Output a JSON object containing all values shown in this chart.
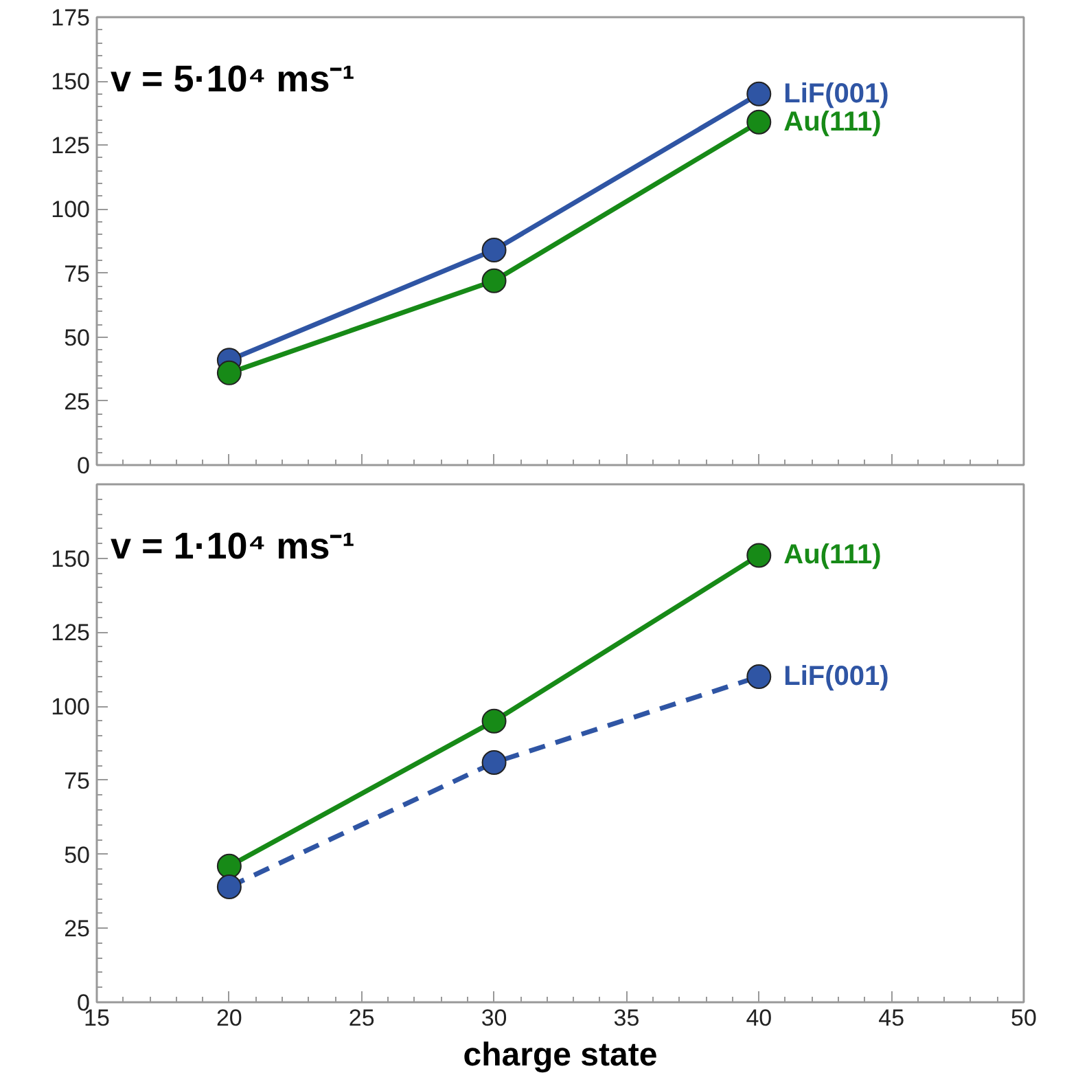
{
  "chart_data": [
    {
      "type": "line",
      "annotations": [
        "v = 5·10⁴ ms⁻¹"
      ],
      "x": [
        20,
        30,
        40
      ],
      "xlim": [
        15,
        50
      ],
      "xticks": [
        15,
        20,
        25,
        30,
        35,
        40,
        45,
        50
      ],
      "ylim": [
        0,
        175
      ],
      "yticks": [
        0,
        25,
        50,
        75,
        100,
        125,
        150,
        175
      ],
      "tick_labels": "y",
      "grid": false,
      "marker": "circle",
      "legend": "right",
      "series": [
        {
          "name": "LiF(001)",
          "color": "#2f55a4",
          "values": [
            41,
            84,
            145
          ],
          "line_style": "solid"
        },
        {
          "name": "Au(111)",
          "color": "#178a17",
          "values": [
            36,
            72,
            134
          ],
          "line_style": "solid"
        }
      ]
    },
    {
      "type": "line",
      "annotations": [
        "v = 1·10⁴ ms⁻¹"
      ],
      "xlabel": "charge state",
      "x": [
        20,
        30,
        40
      ],
      "xlim": [
        15,
        50
      ],
      "xticks": [
        15,
        20,
        25,
        30,
        35,
        40,
        45,
        50
      ],
      "ylim": [
        0,
        175
      ],
      "yticks": [
        0,
        25,
        50,
        75,
        100,
        125,
        150,
        {
          "value": 175,
          "label": null
        }
      ],
      "grid": false,
      "marker": "circle",
      "legend": "right",
      "series": [
        {
          "name": "Au(111)",
          "color": "#178a17",
          "values": [
            46,
            95,
            151
          ],
          "line_style": "solid"
        },
        {
          "name": "LiF(001)",
          "color": "#2f55a4",
          "values": [
            39,
            81,
            110
          ],
          "line_style": "dashed"
        }
      ]
    }
  ]
}
